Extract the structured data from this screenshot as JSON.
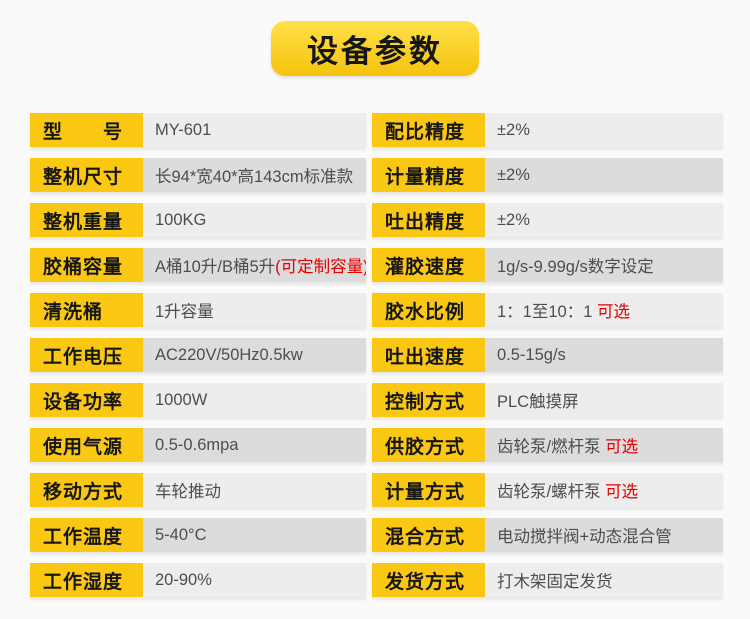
{
  "title": {
    "text": "设备参数"
  },
  "colors": {
    "page_bg": "#fafafa",
    "label_bg": "#fac713",
    "row_light": "#ededed",
    "row_dark": "#dcdcdc",
    "value_text": "#4d4d4d",
    "label_text": "#161616",
    "red": "#e60000",
    "title_top": "#ffe049",
    "title_bottom": "#f5c30d"
  },
  "table": {
    "left_rows": [
      {
        "label": "型　　号",
        "value": "MY-601"
      },
      {
        "label": "整机尺寸",
        "value": "长94*宽40*高143cm标准款"
      },
      {
        "label": "整机重量",
        "value": "100KG"
      },
      {
        "label": "胶桶容量",
        "value": "A桶10升/B桶5升",
        "red": "(可定制容量)"
      },
      {
        "label": "清洗桶",
        "value": "1升容量"
      },
      {
        "label": "工作电压",
        "value": "AC220V/50Hz0.5kw"
      },
      {
        "label": "设备功率",
        "value": "1000W"
      },
      {
        "label": "使用气源",
        "value": "0.5-0.6mpa"
      },
      {
        "label": "移动方式",
        "value": "车轮推动"
      },
      {
        "label": "工作温度",
        "value": "5-40°C"
      },
      {
        "label": "工作湿度",
        "value": "20-90%"
      }
    ],
    "right_rows": [
      {
        "label": "配比精度",
        "value": "±2%"
      },
      {
        "label": "计量精度",
        "value": "±2%"
      },
      {
        "label": "吐出精度",
        "value": "±2%"
      },
      {
        "label": "灌胶速度",
        "value": "1g/s-9.99g/s数字设定"
      },
      {
        "label": "胶水比例",
        "value": "1：1至10：1 ",
        "red": "可选"
      },
      {
        "label": "吐出速度",
        "value": "0.5-15g/s"
      },
      {
        "label": "控制方式",
        "value": "PLC触摸屏"
      },
      {
        "label": "供胶方式",
        "value": "齿轮泵/燃杆泵 ",
        "red": "可选"
      },
      {
        "label": "计量方式",
        "value": "齿轮泵/螺杆泵 ",
        "red": "可选"
      },
      {
        "label": "混合方式",
        "value": "电动搅拌阀+动态混合管"
      },
      {
        "label": "发货方式",
        "value": "打木架固定发货"
      }
    ]
  }
}
